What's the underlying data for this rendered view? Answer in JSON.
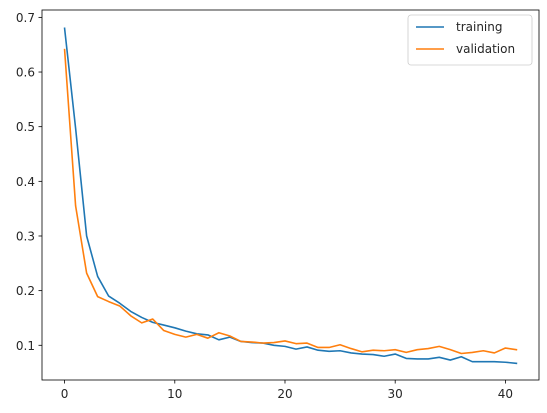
{
  "chart_data": {
    "type": "line",
    "title": "",
    "xlabel": "",
    "ylabel": "",
    "xlim": [
      -2.05,
      43.05
    ],
    "ylim": [
      0.0365,
      0.7135
    ],
    "xticks": [
      0,
      10,
      20,
      30,
      40
    ],
    "yticks": [
      0.1,
      0.2,
      0.3,
      0.4,
      0.5,
      0.6,
      0.7
    ],
    "grid": false,
    "legend_position": "top-right",
    "x": [
      0,
      1,
      2,
      3,
      4,
      5,
      6,
      7,
      8,
      9,
      10,
      11,
      12,
      13,
      14,
      15,
      16,
      17,
      18,
      19,
      20,
      21,
      22,
      23,
      24,
      25,
      26,
      27,
      28,
      29,
      30,
      31,
      32,
      33,
      34,
      35,
      36,
      37,
      38,
      39,
      40,
      41
    ],
    "series": [
      {
        "name": "training",
        "color": "#1f77b4",
        "values": [
          0.68,
          0.497,
          0.3,
          0.226,
          0.19,
          0.177,
          0.162,
          0.151,
          0.142,
          0.137,
          0.132,
          0.126,
          0.121,
          0.119,
          0.11,
          0.115,
          0.107,
          0.105,
          0.104,
          0.1,
          0.098,
          0.093,
          0.097,
          0.091,
          0.089,
          0.09,
          0.086,
          0.084,
          0.083,
          0.08,
          0.084,
          0.076,
          0.075,
          0.075,
          0.078,
          0.073,
          0.079,
          0.07,
          0.07,
          0.07,
          0.069,
          0.067
        ]
      },
      {
        "name": "validation",
        "color": "#ff7f0e",
        "values": [
          0.641,
          0.355,
          0.232,
          0.189,
          0.18,
          0.172,
          0.154,
          0.141,
          0.148,
          0.127,
          0.12,
          0.115,
          0.12,
          0.113,
          0.123,
          0.117,
          0.107,
          0.106,
          0.104,
          0.105,
          0.108,
          0.103,
          0.104,
          0.096,
          0.096,
          0.101,
          0.094,
          0.088,
          0.091,
          0.09,
          0.092,
          0.087,
          0.092,
          0.094,
          0.098,
          0.092,
          0.085,
          0.087,
          0.09,
          0.086,
          0.095,
          0.092
        ]
      }
    ]
  }
}
